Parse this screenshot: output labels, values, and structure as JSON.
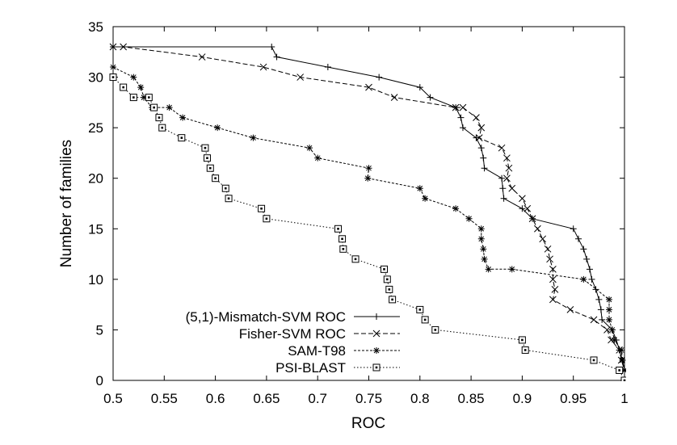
{
  "chart_data": {
    "type": "line",
    "title": "",
    "xlabel": "ROC",
    "ylabel": "Number of families",
    "xlim": [
      0.5,
      1
    ],
    "ylim": [
      0,
      35
    ],
    "x_ticks": [
      "0.5",
      "0.55",
      "0.6",
      "0.65",
      "0.7",
      "0.75",
      "0.8",
      "0.85",
      "0.9",
      "0.95",
      "1"
    ],
    "y_ticks": [
      "0",
      "5",
      "10",
      "15",
      "20",
      "25",
      "30",
      "35"
    ],
    "grid": false,
    "legend_position": "bottom-left",
    "series": [
      {
        "name": "(5,1)-Mismatch-SVM ROC",
        "marker": "plus",
        "dash": "solid",
        "points": [
          [
            0.5,
            33
          ],
          [
            0.655,
            33
          ],
          [
            0.66,
            32
          ],
          [
            0.71,
            31
          ],
          [
            0.76,
            30
          ],
          [
            0.8,
            29
          ],
          [
            0.81,
            28
          ],
          [
            0.835,
            27
          ],
          [
            0.84,
            26
          ],
          [
            0.842,
            25
          ],
          [
            0.855,
            24
          ],
          [
            0.86,
            23
          ],
          [
            0.862,
            22
          ],
          [
            0.863,
            21
          ],
          [
            0.88,
            20
          ],
          [
            0.881,
            19
          ],
          [
            0.882,
            18
          ],
          [
            0.9,
            17
          ],
          [
            0.91,
            16
          ],
          [
            0.95,
            15
          ],
          [
            0.955,
            14
          ],
          [
            0.96,
            13
          ],
          [
            0.963,
            12
          ],
          [
            0.966,
            11
          ],
          [
            0.968,
            10
          ],
          [
            0.972,
            9
          ],
          [
            0.975,
            8
          ],
          [
            0.977,
            7
          ],
          [
            0.978,
            6
          ],
          [
            0.988,
            5
          ],
          [
            0.992,
            4
          ],
          [
            0.995,
            3
          ],
          [
            0.998,
            2
          ],
          [
            1.0,
            1
          ],
          [
            1.0,
            0
          ]
        ]
      },
      {
        "name": "Fisher-SVM ROC",
        "marker": "cross",
        "dash": "dashed",
        "points": [
          [
            0.5,
            33
          ],
          [
            0.51,
            33
          ],
          [
            0.587,
            32
          ],
          [
            0.647,
            31
          ],
          [
            0.683,
            30
          ],
          [
            0.75,
            29
          ],
          [
            0.775,
            28
          ],
          [
            0.835,
            27
          ],
          [
            0.842,
            27
          ],
          [
            0.855,
            26
          ],
          [
            0.86,
            25
          ],
          [
            0.858,
            24
          ],
          [
            0.88,
            23
          ],
          [
            0.885,
            22
          ],
          [
            0.887,
            21
          ],
          [
            0.885,
            20
          ],
          [
            0.89,
            19
          ],
          [
            0.9,
            18
          ],
          [
            0.905,
            17
          ],
          [
            0.91,
            16
          ],
          [
            0.915,
            15
          ],
          [
            0.92,
            14
          ],
          [
            0.925,
            13
          ],
          [
            0.927,
            12
          ],
          [
            0.93,
            11
          ],
          [
            0.93,
            10
          ],
          [
            0.932,
            9
          ],
          [
            0.93,
            8
          ],
          [
            0.947,
            7
          ],
          [
            0.97,
            6
          ],
          [
            0.983,
            5
          ],
          [
            0.987,
            4
          ],
          [
            0.995,
            3
          ],
          [
            0.997,
            2
          ],
          [
            1.0,
            1
          ]
        ]
      },
      {
        "name": "SAM-T98",
        "marker": "star",
        "dash": "densely-dotted",
        "points": [
          [
            0.5,
            31
          ],
          [
            0.52,
            30
          ],
          [
            0.527,
            29
          ],
          [
            0.53,
            28
          ],
          [
            0.538,
            27
          ],
          [
            0.555,
            27
          ],
          [
            0.568,
            26
          ],
          [
            0.602,
            25
          ],
          [
            0.637,
            24
          ],
          [
            0.692,
            23
          ],
          [
            0.7,
            22
          ],
          [
            0.75,
            21
          ],
          [
            0.749,
            20
          ],
          [
            0.8,
            19
          ],
          [
            0.805,
            18
          ],
          [
            0.835,
            17
          ],
          [
            0.848,
            16
          ],
          [
            0.86,
            15
          ],
          [
            0.86,
            14
          ],
          [
            0.862,
            13
          ],
          [
            0.863,
            12
          ],
          [
            0.867,
            11
          ],
          [
            0.89,
            11
          ],
          [
            0.96,
            10
          ],
          [
            0.985,
            8
          ],
          [
            0.985,
            7
          ],
          [
            0.985,
            6
          ],
          [
            0.988,
            5
          ],
          [
            0.99,
            4
          ],
          [
            0.997,
            3
          ],
          [
            0.998,
            2
          ],
          [
            1.0,
            1
          ],
          [
            1.0,
            0
          ]
        ]
      },
      {
        "name": "PSI-BLAST",
        "marker": "square",
        "dash": "dotted",
        "points": [
          [
            0.5,
            30
          ],
          [
            0.51,
            29
          ],
          [
            0.52,
            28
          ],
          [
            0.535,
            28
          ],
          [
            0.54,
            27
          ],
          [
            0.545,
            26
          ],
          [
            0.548,
            25
          ],
          [
            0.567,
            24
          ],
          [
            0.59,
            23
          ],
          [
            0.592,
            22
          ],
          [
            0.595,
            21
          ],
          [
            0.6,
            20
          ],
          [
            0.61,
            19
          ],
          [
            0.613,
            18
          ],
          [
            0.645,
            17
          ],
          [
            0.65,
            16
          ],
          [
            0.72,
            15
          ],
          [
            0.724,
            14
          ],
          [
            0.725,
            13
          ],
          [
            0.737,
            12
          ],
          [
            0.765,
            11
          ],
          [
            0.768,
            10
          ],
          [
            0.77,
            9
          ],
          [
            0.773,
            8
          ],
          [
            0.8,
            7
          ],
          [
            0.805,
            6
          ],
          [
            0.815,
            5
          ],
          [
            0.9,
            4
          ],
          [
            0.903,
            3
          ],
          [
            0.97,
            2
          ],
          [
            0.995,
            1
          ],
          [
            1.0,
            0
          ]
        ]
      }
    ]
  }
}
